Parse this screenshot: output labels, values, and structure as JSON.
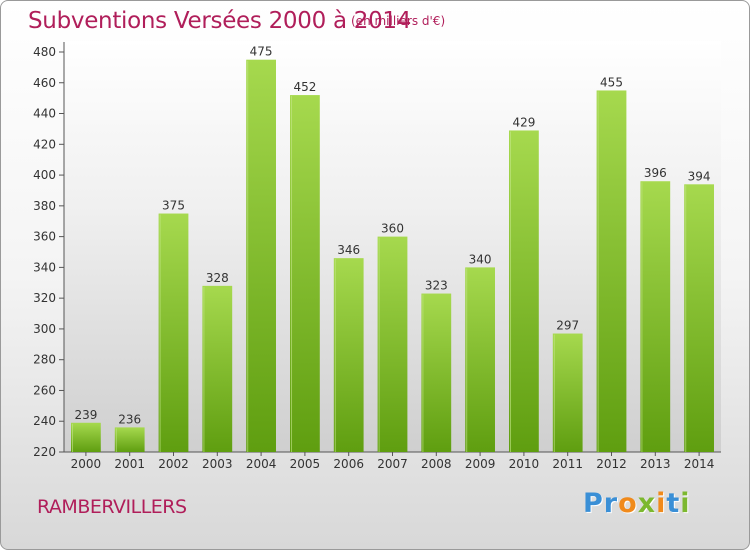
{
  "title": "Subventions Versées 2000 à 2014",
  "unit_note": "(en milliers d'€)",
  "commune": "RAMBERVILLERS",
  "logo": {
    "letters": [
      "P",
      "r",
      "o",
      "x",
      "i",
      "t",
      "i"
    ],
    "colors": [
      "#3a8fd6",
      "#3a8fd6",
      "#f08a1c",
      "#7cb82f",
      "#f08a1c",
      "#3a8fd6",
      "#7cb82f"
    ]
  },
  "colors": {
    "bar_top": "#a6d94e",
    "bar_bottom": "#5f9e10",
    "text": "#b01e5a"
  },
  "chart_data": {
    "type": "bar",
    "title": "Subventions Versées 2000 à 2014",
    "categories": [
      "2000",
      "2001",
      "2002",
      "2003",
      "2004",
      "2005",
      "2006",
      "2007",
      "2008",
      "2009",
      "2010",
      "2011",
      "2012",
      "2013",
      "2014"
    ],
    "values": [
      239,
      236,
      375,
      328,
      475,
      452,
      346,
      360,
      323,
      340,
      429,
      297,
      455,
      396,
      394
    ],
    "ylim": [
      220,
      480
    ],
    "yticks": [
      220,
      240,
      260,
      280,
      300,
      320,
      340,
      360,
      380,
      400,
      420,
      440,
      460,
      480
    ],
    "grid": false,
    "xlabel": "",
    "ylabel": ""
  }
}
